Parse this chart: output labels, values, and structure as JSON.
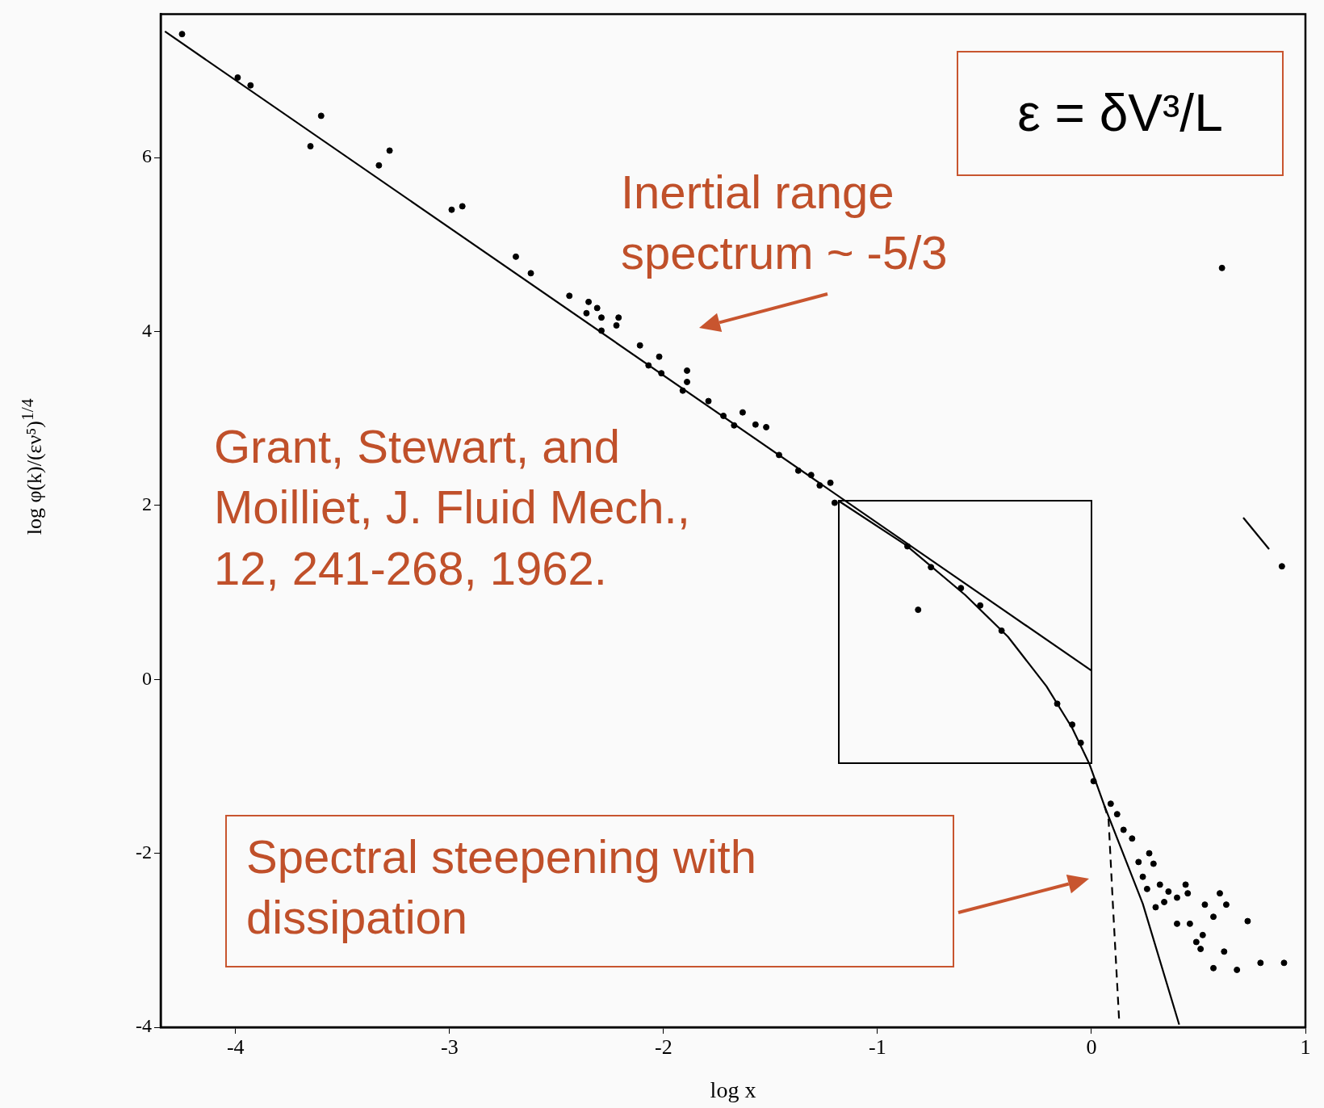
{
  "chart_data": {
    "type": "scatter",
    "xlabel": "log x",
    "ylabel": "log φ(k)/(εν⁵)$^{1/4}$",
    "xlim": [
      -4.35,
      1
    ],
    "xticks": [
      -4,
      -3,
      -2,
      -1,
      0,
      1
    ],
    "ylim": [
      -4,
      7.65
    ],
    "yticks": [
      -4,
      -2,
      0,
      2,
      4,
      6
    ],
    "series": [
      {
        "type": "scatter",
        "marker": "circle",
        "color": "#000000",
        "x": [
          -4.25,
          -3.99,
          -3.93,
          -3.6,
          -3.65,
          -3.28,
          -3.33,
          -2.99,
          -2.94,
          -2.69,
          -2.62,
          -2.44,
          -2.35,
          -2.36,
          -2.31,
          -2.29,
          -2.21,
          -2.22,
          -2.29,
          -2.11,
          -2.02,
          -2.07,
          -2.01,
          -1.89,
          -1.89,
          -1.91,
          -1.79,
          -1.72,
          -1.67,
          -1.63,
          -1.57,
          -1.52,
          -1.46,
          -1.37,
          -1.31,
          -1.27,
          -1.22,
          -1.2,
          -0.81,
          -0.86,
          -0.75,
          -0.61,
          -0.52,
          -0.42,
          -0.16,
          -0.09,
          -0.05,
          0.01,
          0.09,
          0.12,
          0.15,
          0.19,
          0.27,
          0.22,
          0.29,
          0.24,
          0.26,
          0.32,
          0.36,
          0.44,
          0.4,
          0.45,
          0.34,
          0.3,
          0.6,
          0.53,
          0.63,
          0.57,
          0.73,
          0.4,
          0.46,
          0.52,
          0.49,
          0.51,
          0.62,
          0.57,
          0.68,
          0.79,
          0.9,
          0.89,
          0.61
        ],
        "values": [
          7.42,
          6.92,
          6.83,
          6.48,
          6.13,
          6.08,
          5.91,
          5.4,
          5.44,
          4.86,
          4.67,
          4.41,
          4.34,
          4.21,
          4.27,
          4.16,
          4.16,
          4.07,
          4.01,
          3.84,
          3.71,
          3.61,
          3.52,
          3.55,
          3.42,
          3.32,
          3.2,
          3.03,
          2.92,
          3.07,
          2.93,
          2.9,
          2.58,
          2.4,
          2.35,
          2.23,
          2.26,
          2.03,
          0.8,
          1.53,
          1.29,
          1.05,
          0.85,
          0.56,
          -0.28,
          -0.52,
          -0.73,
          -1.17,
          -1.43,
          -1.55,
          -1.73,
          -1.83,
          -2.0,
          -2.1,
          -2.12,
          -2.27,
          -2.41,
          -2.36,
          -2.44,
          -2.36,
          -2.51,
          -2.46,
          -2.56,
          -2.62,
          -2.46,
          -2.59,
          -2.59,
          -2.73,
          -2.78,
          -2.81,
          -2.81,
          -2.94,
          -3.02,
          -3.1,
          -3.13,
          -3.32,
          -3.34,
          -3.26,
          -3.26,
          1.3,
          4.73
        ]
      },
      {
        "type": "line",
        "color": "#000000",
        "x": [
          -4.33,
          0
        ],
        "values": [
          7.45,
          0.1
        ]
      },
      {
        "type": "line",
        "color": "#000000",
        "x": [
          -1.18,
          -0.87,
          -0.59,
          -0.39,
          -0.21,
          -0.09,
          -0.01,
          0.06,
          0.24,
          0.41
        ],
        "values": [
          2.05,
          1.55,
          0.97,
          0.49,
          -0.08,
          -0.56,
          -0.97,
          -1.45,
          -2.58,
          -3.97
        ]
      },
      {
        "type": "line",
        "color": "#000000",
        "line_style": "dashed",
        "x": [
          0.06,
          0.08,
          0.1,
          0.13
        ],
        "values": [
          -1.45,
          -1.61,
          -2.58,
          -3.95
        ]
      }
    ],
    "annotations": [
      "ε = δV³/L",
      "Inertial range spectrum ~ -5/3",
      "Grant, Stewart, and Moilliet, J. Fluid Mech., 12, 241-268, 1962.",
      "Spectral steepening with dissipation"
    ]
  }
}
